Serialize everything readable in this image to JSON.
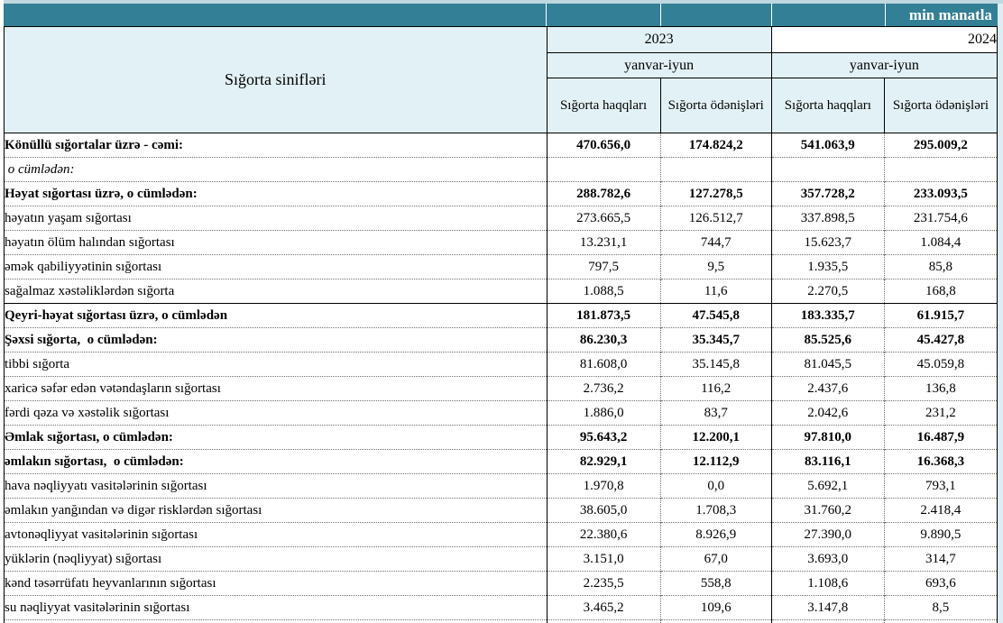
{
  "unit_label": "min manatla",
  "colors": {
    "band_teal": "#337f96",
    "header_fill": "#e2f1f5",
    "solid_border": "#000000",
    "dotted_grid": "#707070"
  },
  "table": {
    "label_header": "Sığorta sinifləri",
    "groups": [
      {
        "year": "2023",
        "period": "yanvar-iyun",
        "columns": [
          "Sığorta haqqları",
          "Sığorta ödənişləri"
        ]
      },
      {
        "year": "2024",
        "period": "yanvar-iyun",
        "columns": [
          "Sığorta haqqları",
          "Sığorta ödənişləri"
        ]
      }
    ],
    "rows": [
      {
        "label": "Könüllü sığortalar üzrə - cəmi:",
        "bold": true,
        "indent": 0,
        "values": [
          "470.656,0",
          "174.824,2",
          "541.063,9",
          "295.009,2"
        ]
      },
      {
        "label": " o cümlədən:",
        "italic": true,
        "indent": 0,
        "values": [
          "",
          "",
          "",
          ""
        ]
      },
      {
        "label": "Həyat sığortası üzrə, o cümlədən:",
        "bold": true,
        "indent": 0,
        "values": [
          "288.782,6",
          "127.278,5",
          "357.728,2",
          "233.093,5"
        ]
      },
      {
        "label": "həyatın yaşam sığortası",
        "indent": 2,
        "values": [
          "273.665,5",
          "126.512,7",
          "337.898,5",
          "231.754,6"
        ]
      },
      {
        "label": "həyatın ölüm halından sığortası",
        "indent": 2,
        "values": [
          "13.231,1",
          "744,7",
          "15.623,7",
          "1.084,4"
        ]
      },
      {
        "label": "əmək qabiliyyətinin sığortası",
        "indent": 3,
        "values": [
          "797,5",
          "9,5",
          "1.935,5",
          "85,8"
        ]
      },
      {
        "label": "sağalmaz xəstəliklərdən sığorta",
        "indent": 2,
        "values": [
          "1.088,5",
          "11,6",
          "2.270,5",
          "168,8"
        ]
      },
      {
        "label": "Qeyri-həyat sığortası üzrə, o cümlədən",
        "bold": true,
        "indent": 0,
        "solid_top": true,
        "values": [
          "181.873,5",
          "47.545,8",
          "183.335,7",
          "61.915,7"
        ]
      },
      {
        "label": "Şəxsi sığorta,  o cümlədən:",
        "bold": true,
        "indent": 0,
        "values": [
          "86.230,3",
          "35.345,7",
          "85.525,6",
          "45.427,8"
        ]
      },
      {
        "label": "tibbi sığorta",
        "indent": 2,
        "values": [
          "81.608,0",
          "35.145,8",
          "81.045,5",
          "45.059,8"
        ]
      },
      {
        "label": "xaricə səfər edən vətəndaşların sığortası",
        "indent": 2,
        "values": [
          "2.736,2",
          "116,2",
          "2.437,6",
          "136,8"
        ]
      },
      {
        "label": "fərdi qəza və xəstəlik sığortası",
        "indent": 2,
        "values": [
          "1.886,0",
          "83,7",
          "2.042,6",
          "231,2"
        ]
      },
      {
        "label": "Əmlak sığortası, o cümlədən:",
        "bold": true,
        "indent": 0,
        "values": [
          "95.643,2",
          "12.200,1",
          "97.810,0",
          "16.487,9"
        ]
      },
      {
        "label": "əmlakın sığortası,  o cümlədən:",
        "bold": true,
        "indent": 0,
        "values": [
          "82.929,1",
          "12.112,9",
          "83.116,1",
          "16.368,3"
        ]
      },
      {
        "label": "hava nəqliyyatı vasitələrinin sığortası",
        "indent": 2,
        "values": [
          "1.970,8",
          "0,0",
          "5.692,1",
          "793,1"
        ]
      },
      {
        "label": "əmlakın yanğından və digər risklərdən sığortası",
        "indent": 2,
        "values": [
          "38.605,0",
          "1.708,3",
          "31.760,2",
          "2.418,4"
        ]
      },
      {
        "label": "avtonəqliyyat vasitələrinin sığortası",
        "indent": 2,
        "values": [
          "22.380,6",
          "8.926,9",
          "27.390,0",
          "9.890,5"
        ]
      },
      {
        "label": "yüklərin (nəqliyyat) sığortası",
        "indent": 2,
        "values": [
          "3.151,0",
          "67,0",
          "3.693,0",
          "314,7"
        ]
      },
      {
        "label": "kənd təsərrüfatı heyvanlarının sığortası",
        "indent": 2,
        "values": [
          "2.235,5",
          "558,8",
          "1.108,6",
          "693,6"
        ]
      },
      {
        "label": "su nəqliyyat vasitələrinin sığortası",
        "indent": 2,
        "values": [
          "3.465,2",
          "109,6",
          "3.147,8",
          "8,5"
        ]
      }
    ]
  }
}
